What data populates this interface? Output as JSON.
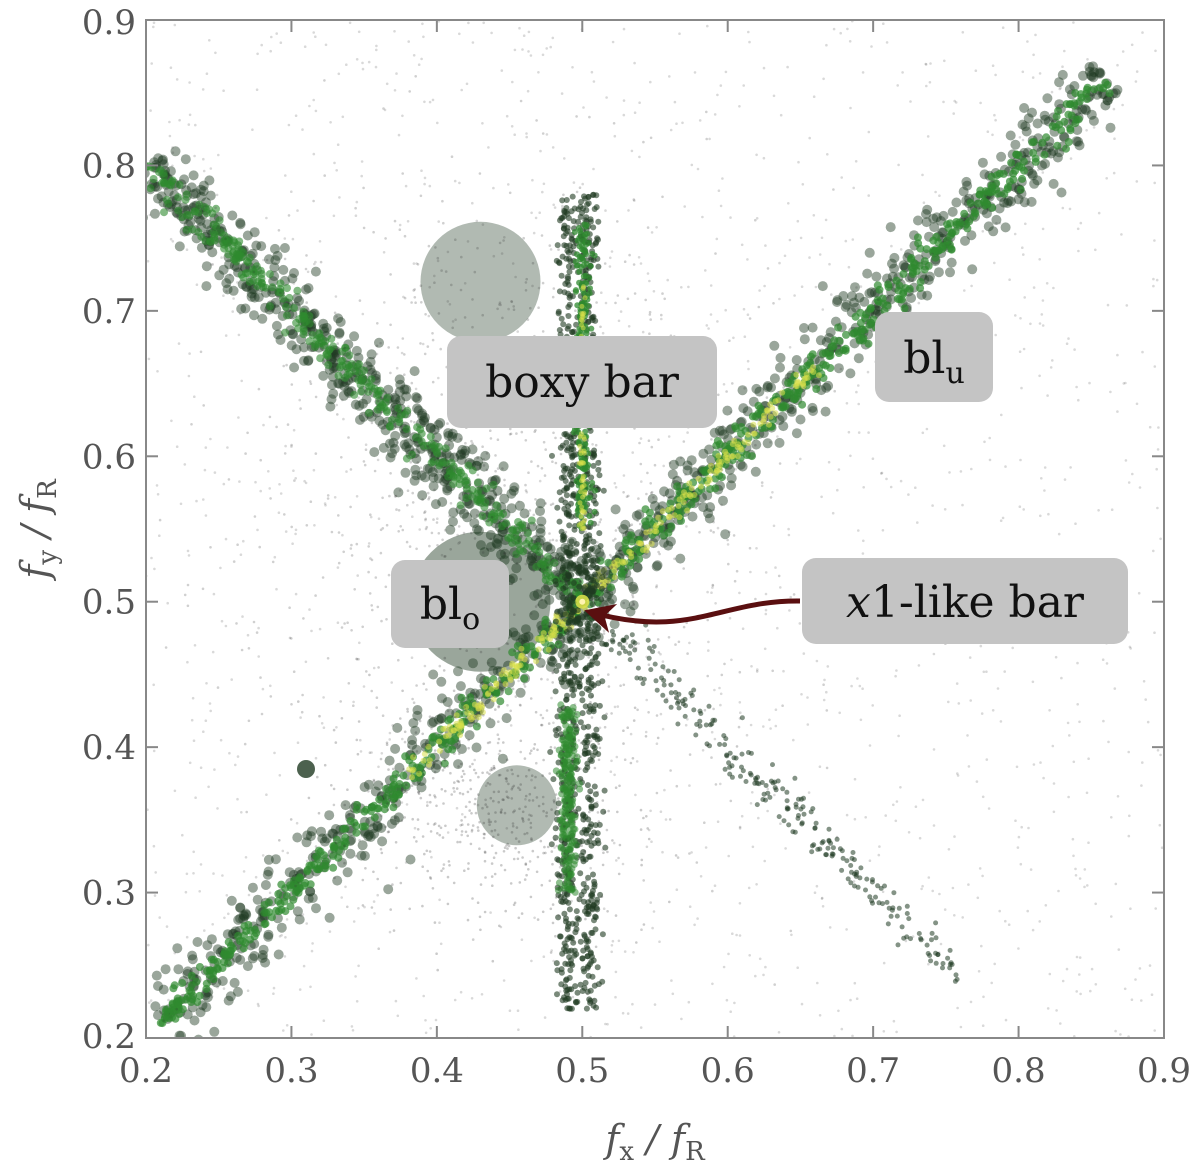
{
  "chart_data": {
    "type": "heatmap",
    "xlim": [
      0.2,
      0.9
    ],
    "ylim": [
      0.2,
      0.9
    ],
    "x_ticks": [
      "0.2",
      "0.3",
      "0.4",
      "0.5",
      "0.6",
      "0.7",
      "0.8",
      "0.9"
    ],
    "y_ticks": [
      "0.2",
      "0.3",
      "0.4",
      "0.5",
      "0.6",
      "0.7",
      "0.8",
      "0.9"
    ],
    "xlabel": {
      "main": "f",
      "sub1": "x",
      "sep": " / f",
      "sub2": "R"
    },
    "ylabel": {
      "main": "f",
      "sub1": "y",
      "sep": " / f",
      "sub2": "R"
    },
    "grid": false,
    "colors": {
      "scatter": "#2a2a2a",
      "density_low": "#1f3a22",
      "density_mid": "#2f8a2f",
      "density_high": "#d8e04a",
      "arrow": "#5a0f10",
      "label_box": "#c4c4c4"
    },
    "features": [
      {
        "name": "diagonal ridge",
        "x": [
          0.21,
          0.86
        ],
        "y": [
          0.21,
          0.86
        ]
      },
      {
        "name": "anti-diagonal ridge",
        "x": [
          0.2,
          0.5
        ],
        "y": [
          0.8,
          0.5
        ]
      },
      {
        "name": "lower anti-diagonal streak",
        "x": [
          0.52,
          0.76
        ],
        "y": [
          0.48,
          0.24
        ]
      },
      {
        "name": "vertical band",
        "x": [
          0.5,
          0.5
        ],
        "y": [
          0.22,
          0.78
        ]
      }
    ],
    "annotations": [
      {
        "id": "boxy",
        "text": "boxy bar",
        "x": 0.424,
        "y": 0.648
      },
      {
        "id": "blu",
        "text": "bl",
        "sub": "u",
        "x": 0.76,
        "y": 0.664
      },
      {
        "id": "blo",
        "text": "bl",
        "sub": "o",
        "x": 0.375,
        "y": 0.497
      },
      {
        "id": "x1",
        "text_italic": "x",
        "text": "1-like bar",
        "x": 0.622,
        "y": 0.5,
        "arrow_to": [
          0.503,
          0.497
        ]
      }
    ]
  }
}
